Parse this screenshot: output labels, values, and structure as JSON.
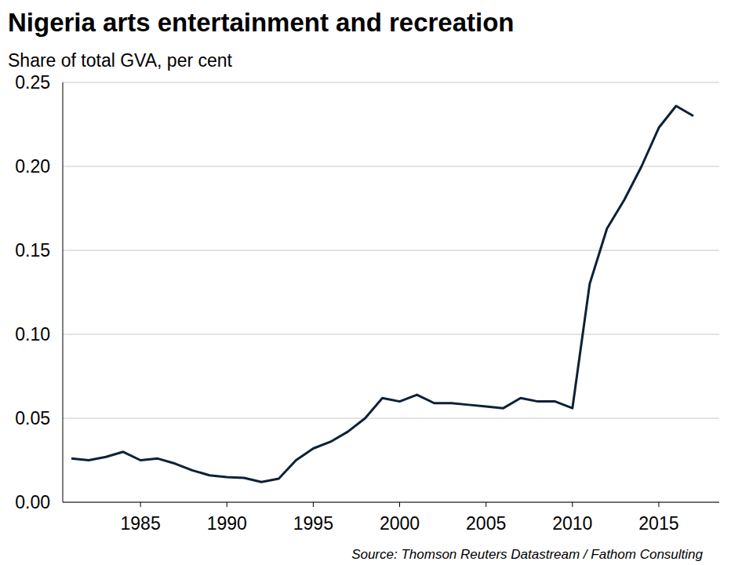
{
  "chart_data": {
    "type": "line",
    "title": "Nigeria arts entertainment and recreation",
    "subtitle": "Share of total GVA, per cent",
    "source": "Source: Thomson Reuters Datastream / Fathom Consulting",
    "x": [
      1981,
      1982,
      1983,
      1984,
      1985,
      1986,
      1987,
      1988,
      1989,
      1990,
      1991,
      1992,
      1993,
      1994,
      1995,
      1996,
      1997,
      1998,
      1999,
      2000,
      2001,
      2002,
      2003,
      2004,
      2005,
      2006,
      2007,
      2008,
      2009,
      2010,
      2011,
      2012,
      2013,
      2014,
      2015,
      2016,
      2017
    ],
    "series": [
      {
        "name": "Arts entertainment and recreation",
        "color": "#0d2137",
        "values": [
          0.026,
          0.025,
          0.027,
          0.03,
          0.025,
          0.026,
          0.023,
          0.019,
          0.016,
          0.015,
          0.0145,
          0.012,
          0.014,
          0.025,
          0.032,
          0.036,
          0.042,
          0.05,
          0.062,
          0.06,
          0.064,
          0.059,
          0.059,
          0.058,
          0.057,
          0.056,
          0.062,
          0.06,
          0.06,
          0.056,
          0.13,
          0.163,
          0.18,
          0.2,
          0.223,
          0.236,
          0.23
        ]
      }
    ],
    "xlim": [
      1980.5,
      2018.5
    ],
    "xticks": [
      1985,
      1990,
      1995,
      2000,
      2005,
      2010,
      2015
    ],
    "ylim": [
      0,
      0.25
    ],
    "yticks": [
      {
        "value": 0,
        "label": "0.00"
      },
      {
        "value": 0.05,
        "label": "0.05"
      },
      {
        "value": 0.1,
        "label": "0.10"
      },
      {
        "value": 0.15,
        "label": "0.15"
      },
      {
        "value": 0.2,
        "label": "0.20"
      },
      {
        "value": 0.25,
        "label": "0.25"
      }
    ],
    "grid": true
  }
}
